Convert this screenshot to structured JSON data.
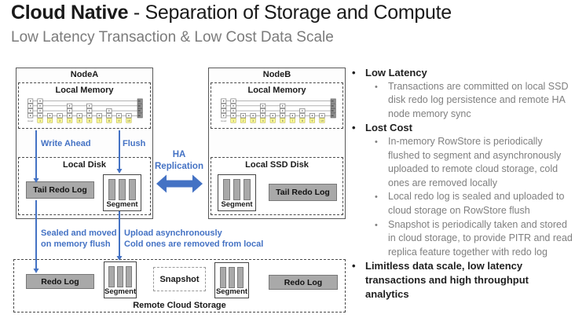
{
  "slide": {
    "title_bold": "Cloud Native",
    "title_rest": " - Separation of Storage and Compute",
    "subtitle": "Low Latency Transaction & Low Cost Data Scale"
  },
  "nodeA": {
    "title": "NodeA",
    "memory_label": "Local Memory",
    "disk_label": "Local Disk",
    "tail_redo_label": "Tail Redo Log",
    "segment_label": "Segment"
  },
  "nodeB": {
    "title": "NodeB",
    "memory_label": "Local Memory",
    "disk_label": "Local SSD Disk",
    "tail_redo_label": "Tail Redo Log",
    "segment_label": "Segment"
  },
  "labels": {
    "write_ahead": "Write Ahead",
    "flush": "Flush",
    "ha_replication": "HA\nReplication",
    "sealed": "Sealed and moved\non memory flush",
    "upload": "Upload asynchronously\nCold ones are removed from local"
  },
  "cloud": {
    "title": "Remote Cloud Storage",
    "redo_log_left": "Redo Log",
    "segment_left": "Segment",
    "snapshot": "Snapshot",
    "segment_right": "Segment",
    "redo_log_right": "Redo Log"
  },
  "skiplist": {
    "head_label": "Head",
    "keys": [
      1,
      2,
      3,
      4,
      5,
      6,
      7,
      8,
      9,
      10
    ],
    "heights": [
      4,
      1,
      1,
      3,
      1,
      3,
      1,
      2,
      1,
      1
    ],
    "levels": 4
  },
  "bullets": [
    {
      "level": 1,
      "text": "Low Latency"
    },
    {
      "level": 2,
      "text": "Transactions are committed on local SSD disk redo log persistence and remote HA node memory sync"
    },
    {
      "level": 1,
      "text": "Lost Cost"
    },
    {
      "level": 2,
      "text": "In-memory RowStore is periodically flushed to segment and asynchronously uploaded to remote cloud storage, cold ones are removed locally"
    },
    {
      "level": 2,
      "text": "Local redo log is sealed and uploaded to cloud storage on RowStore flush"
    },
    {
      "level": 2,
      "text": "Snapshot is periodically taken and stored in cloud storage, to provide PITR and read replica feature together with redo log"
    },
    {
      "level": 1,
      "text": "Limitless data scale, low latency transactions and high throughput analytics"
    }
  ],
  "colors": {
    "accent_blue": "#4472C4",
    "box_gray": "#A9A9A9",
    "subtitle_gray": "#7B7B7B",
    "bullet_gray": "#7F7F7F",
    "skiplist_yellow": "#FFFF99"
  }
}
